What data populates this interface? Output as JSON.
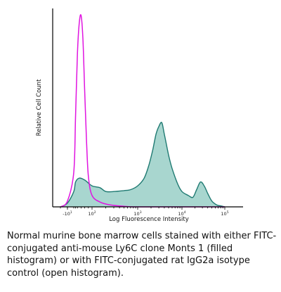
{
  "chart_data": {
    "type": "area",
    "title": "",
    "xlabel": "Log Fluorescence Intensity",
    "ylabel": "Relative Cell Count",
    "xscale": "biexponential-log",
    "xlim": [
      -20,
      100000
    ],
    "ylim": [
      0,
      100
    ],
    "grid": false,
    "x_ticks": [
      {
        "value": -10,
        "base": "-10",
        "exp": "1"
      },
      {
        "value": 100,
        "base": "10",
        "exp": "2"
      },
      {
        "value": 1000,
        "base": "10",
        "exp": "3"
      },
      {
        "value": 10000,
        "base": "10",
        "exp": "4"
      },
      {
        "value": 100000,
        "base": "10",
        "exp": "5"
      }
    ],
    "series": [
      {
        "style": "filled",
        "color": "#1f7a72",
        "fill": "#a8d6cf",
        "x": [
          -20,
          -10,
          0,
          10,
          30,
          60,
          100,
          150,
          200,
          300,
          500,
          700,
          1000,
          1400,
          1800,
          2200,
          2600,
          3000,
          3500,
          4000,
          5000,
          6000,
          8000,
          10000,
          14000,
          18000,
          22000,
          27000,
          33000,
          40000,
          50000,
          65000,
          80000,
          100000
        ],
        "y": [
          0,
          2,
          8,
          13,
          15,
          14,
          11,
          10,
          8,
          8,
          8.5,
          9,
          11,
          15,
          22,
          30,
          38,
          42,
          44,
          38,
          27,
          20,
          12,
          8,
          6,
          5,
          9,
          13,
          11,
          7,
          3,
          1,
          0.5,
          0
        ]
      },
      {
        "style": "open",
        "color": "#e014e0",
        "x": [
          -20,
          -10,
          0,
          10,
          20,
          30,
          40,
          50,
          60,
          70,
          80,
          100,
          150,
          250,
          500,
          1000,
          10000,
          100000
        ],
        "y": [
          0,
          3,
          18,
          48,
          80,
          96,
          100,
          88,
          60,
          34,
          16,
          6,
          2.5,
          1,
          0.3,
          0,
          0,
          0
        ]
      }
    ]
  },
  "caption": "Normal murine bone marrow cells stained with either FITC-conjugated anti-mouse Ly6C clone Monts 1 (filled histogram) or with FITC-conjugated rat IgG2a isotype control (open histogram)."
}
